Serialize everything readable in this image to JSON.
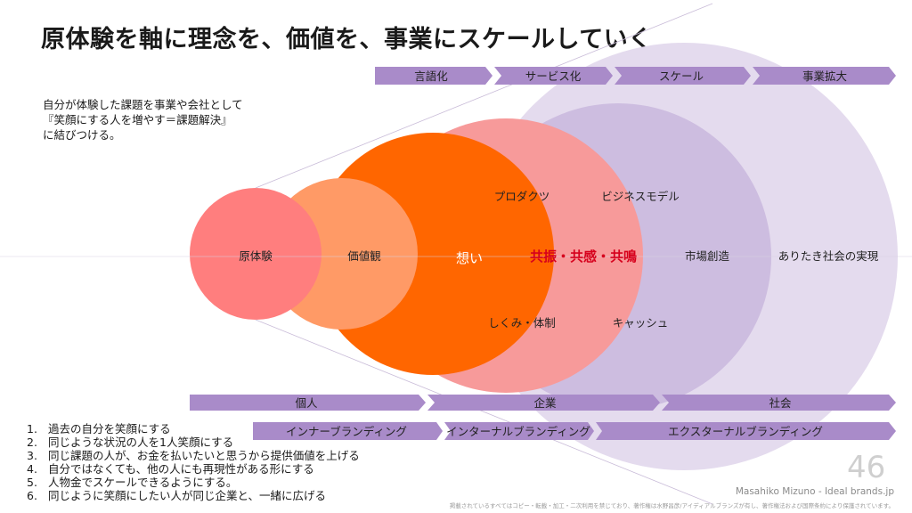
{
  "title": "原体験を軸に理念を、価値を、事業にスケールしていく",
  "intro": [
    "自分が体験した課題を事業や会社として",
    "『笑顔にする人を増やす＝課題解決』",
    "に結びつける。"
  ],
  "top_arrows": [
    "言語化",
    "サービス化",
    "スケール",
    "事業拡大"
  ],
  "circles": {
    "genjiken": "原体験",
    "kachikan": "価値観",
    "omoi": "想い",
    "kyoshin": "共振・共感・共鳴",
    "shijo": "市場創造",
    "arubeki": "ありたき社会の実現"
  },
  "quadrant_labels": {
    "product": "プロダクツ",
    "business_model": "ビジネスモデル",
    "system": "しくみ・体制",
    "cash": "キャッシュ"
  },
  "bottom_arrows_row1": [
    "個人",
    "企業",
    "社会"
  ],
  "bottom_arrows_row2": [
    "インナーブランディング",
    "インターナルブランディング",
    "エクスターナルブランディング"
  ],
  "list": [
    {
      "num": "1.",
      "text": "過去の自分を笑顔にする"
    },
    {
      "num": "2.",
      "text": "同じような状況の人を1人笑顔にする"
    },
    {
      "num": "3.",
      "text": "同じ課題の人が、お金を払いたいと思うから提供価値を上げる"
    },
    {
      "num": "4.",
      "text": "自分ではなくても、他の人にも再現性がある形にする"
    },
    {
      "num": "5.",
      "text": "人物金でスケールできるようにする。"
    },
    {
      "num": "6.",
      "text": "同じように笑顔にしたい人が同じ企業と、一緒に広げる"
    }
  ],
  "page_number": "46",
  "credit": "Masahiko Mizuno - Ideal brands.jp",
  "copyright": "掲載されているすべてはコピー・転載・加工・二次利用を禁じており、著作権は水野昌彦/アイディアルブランズが有し、著作権法および国際条約により保護されています。",
  "colors": {
    "arrow": "#a98bc9",
    "circle_outer": "#e4dbee",
    "circle_5": "#cdbde0",
    "circle_4": "#f79a9a",
    "circle_3": "#ff6600",
    "circle_2": "#ff9a66",
    "circle_1": "#ff7e7e",
    "emphasis": "#d6001c"
  }
}
